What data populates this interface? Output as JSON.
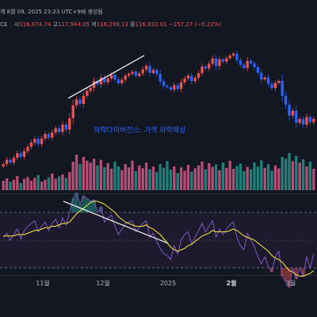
{
  "header": {
    "line1": "게 8월 09, 2025 23:23 UTC+9에 생성됨",
    "symbol_suffix": "CE",
    "open_label": "시",
    "open_value": "116,674.74",
    "high_label": "고",
    "high_value": "117,944.05",
    "low_label": "저",
    "low_value": "116,299.13",
    "close_label": "종",
    "close_value": "116,932.01",
    "change": "−257.27 (−0.22%)"
  },
  "annotation": "하락다이버전스: 가격 하락예상",
  "colors": {
    "background": "#131722",
    "candle_up": "#ef5350",
    "candle_down": "#2962ff",
    "volume_up": "#f06292",
    "volume_down": "#26a69a",
    "rsi_line": "#7e57c2",
    "rsi_ma": "#ffeb3b",
    "rsi_band": "#2a2240",
    "divergence_line": "#ffffff",
    "annotation": "#2962ff"
  },
  "chart_data": [
    {
      "type": "candlestick",
      "title": "",
      "x_ticks": [
        "11월",
        "12월",
        "2025",
        "2월",
        "3월"
      ],
      "price_closes": [
        68000,
        69500,
        68500,
        70200,
        71800,
        70500,
        72500,
        74000,
        75500,
        76800,
        75000,
        76900,
        78500,
        77200,
        79000,
        80500,
        79200,
        81800,
        80000,
        84000,
        88500,
        90500,
        89000,
        91800,
        93500,
        94500,
        97000,
        95800,
        98200,
        96500,
        97800,
        99100,
        97500,
        96200,
        97400,
        98800,
        99500,
        100200,
        98700,
        99600,
        101000,
        102200,
        99800,
        100800,
        99400,
        96800,
        95300,
        94800,
        93900,
        95500,
        94200,
        96500,
        97800,
        98800,
        96900,
        98100,
        99700,
        102000,
        101300,
        103000,
        104800,
        102200,
        104500,
        103700,
        104900,
        105800,
        106500,
        104200,
        102600,
        101500,
        104000,
        103100,
        101800,
        99800,
        97500,
        98200,
        96000,
        94500,
        96300,
        97000,
        91800,
        88700,
        84900,
        86600,
        82400,
        83700,
        81800,
        84400,
        82600,
        83800
      ]
    },
    {
      "type": "bar",
      "title": "Volume",
      "values": [
        20,
        25,
        18,
        22,
        30,
        15,
        24,
        28,
        20,
        26,
        32,
        18,
        22,
        27,
        35,
        24,
        29,
        33,
        26,
        38,
        60,
        75,
        55,
        70,
        62,
        58,
        66,
        52,
        64,
        48,
        57,
        45,
        60,
        50,
        42,
        55,
        48,
        62,
        40,
        52,
        46,
        58,
        44,
        50,
        38,
        55,
        47,
        61,
        43,
        50,
        36,
        48,
        41,
        53,
        39,
        46,
        52,
        60,
        44,
        57,
        49,
        54,
        42,
        58,
        47,
        62,
        45,
        51,
        56,
        40,
        49,
        44,
        58,
        50,
        63,
        47,
        55,
        41,
        52,
        46,
        70,
        66,
        78,
        61,
        72,
        58,
        65,
        50,
        60,
        45
      ],
      "up": [
        1,
        1,
        0,
        1,
        1,
        0,
        1,
        1,
        1,
        1,
        0,
        1,
        1,
        0,
        1,
        1,
        0,
        1,
        0,
        1,
        1,
        1,
        0,
        1,
        1,
        1,
        1,
        0,
        1,
        0,
        1,
        1,
        0,
        0,
        1,
        1,
        1,
        1,
        0,
        1,
        1,
        1,
        0,
        1,
        0,
        0,
        0,
        0,
        0,
        1,
        0,
        1,
        1,
        1,
        0,
        1,
        1,
        1,
        0,
        1,
        1,
        0,
        1,
        0,
        1,
        1,
        1,
        0,
        0,
        0,
        1,
        0,
        0,
        0,
        0,
        1,
        0,
        0,
        1,
        1,
        0,
        0,
        0,
        1,
        0,
        1,
        0,
        1,
        0,
        1
      ]
    },
    {
      "type": "line",
      "title": "RSI",
      "ylim": [
        0,
        100
      ],
      "bands": [
        30,
        70
      ],
      "rsi": [
        52,
        55,
        50,
        54,
        58,
        51,
        57,
        60,
        62,
        64,
        56,
        60,
        63,
        57,
        62,
        65,
        59,
        66,
        61,
        70,
        80,
        84,
        76,
        82,
        80,
        78,
        79,
        70,
        74,
        63,
        66,
        68,
        60,
        54,
        58,
        62,
        63,
        64,
        56,
        59,
        62,
        64,
        52,
        55,
        49,
        44,
        40,
        39,
        36,
        46,
        40,
        50,
        54,
        56,
        47,
        52,
        57,
        62,
        56,
        60,
        64,
        52,
        58,
        54,
        58,
        61,
        63,
        52,
        46,
        43,
        55,
        50,
        45,
        38,
        33,
        38,
        31,
        27,
        38,
        42,
        24,
        20,
        16,
        30,
        22,
        30,
        24,
        38,
        30,
        40
      ],
      "rsi_ma": [
        53,
        53,
        53,
        53,
        54,
        54,
        54,
        55,
        56,
        57,
        57,
        58,
        59,
        59,
        60,
        60,
        61,
        62,
        62,
        63,
        66,
        69,
        71,
        73,
        75,
        77,
        78,
        78,
        77,
        76,
        74,
        72,
        70,
        67,
        65,
        63,
        62,
        61,
        60,
        60,
        60,
        61,
        59,
        58,
        56,
        54,
        51,
        48,
        45,
        43,
        42,
        43,
        44,
        46,
        47,
        49,
        51,
        53,
        54,
        55,
        57,
        56,
        56,
        56,
        56,
        57,
        58,
        57,
        55,
        53,
        52,
        51,
        50,
        48,
        46,
        44,
        42,
        39,
        37,
        36,
        34,
        31,
        28,
        27,
        25,
        24,
        24,
        25,
        26,
        28
      ]
    }
  ]
}
